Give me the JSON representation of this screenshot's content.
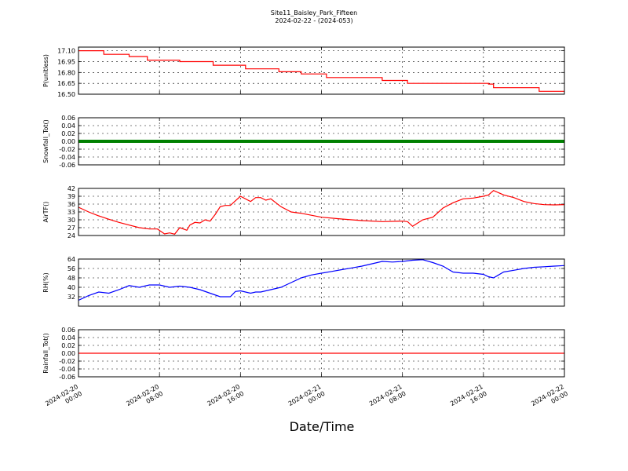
{
  "title": "Site11_Baisley_Park_Fifteen",
  "subtitle": "2024-02-22 - (2024-053)",
  "xlabel": "Date/Time",
  "x_ticks": [
    {
      "l1": "2024-02-20",
      "l2": "00:00",
      "h": 0
    },
    {
      "l1": "2024-02-20",
      "l2": "08:00",
      "h": 8
    },
    {
      "l1": "2024-02-20",
      "l2": "16:00",
      "h": 16
    },
    {
      "l1": "2024-02-21",
      "l2": "00:00",
      "h": 24
    },
    {
      "l1": "2024-02-21",
      "l2": "08:00",
      "h": 32
    },
    {
      "l1": "2024-02-21",
      "l2": "16:00",
      "h": 40
    },
    {
      "l1": "2024-02-22",
      "l2": "00:00",
      "h": 48
    }
  ],
  "chart_data": [
    {
      "type": "line",
      "ylabel": "P(unitless)",
      "ylim": [
        16.5,
        17.15
      ],
      "yticks": [
        "16.50",
        "16.65",
        "16.80",
        "16.95",
        "17.10"
      ],
      "ytick_values": [
        16.5,
        16.65,
        16.8,
        16.95,
        17.1
      ],
      "ytick_labels": [
        "16.50",
        "16.65",
        "16.80",
        "16.95",
        "17.10"
      ],
      "color": "#ff0000",
      "step": true,
      "x_hours": [
        0,
        2.5,
        5,
        6.8,
        10,
        13.3,
        16.5,
        19.8,
        22,
        24.5,
        27,
        30,
        32.5,
        36,
        40.5,
        41,
        45.5,
        48
      ],
      "values": [
        17.1,
        17.05,
        17.02,
        16.97,
        16.95,
        16.9,
        16.85,
        16.81,
        16.78,
        16.73,
        16.73,
        16.69,
        16.65,
        16.65,
        16.64,
        16.59,
        16.54,
        16.54
      ]
    },
    {
      "type": "scatter",
      "ylabel": "Snowfall_Tot()",
      "ylim": [
        -0.06,
        0.06
      ],
      "ytick_values": [
        -0.06,
        -0.04,
        -0.02,
        0,
        0.02,
        0.04,
        0.06
      ],
      "ytick_labels": [
        "-0.06",
        "-0.04",
        "-0.02",
        "0.00",
        "0.02",
        "0.04",
        "0.06"
      ],
      "color": "#008000",
      "x_hours": [
        0,
        48
      ],
      "values": [
        0,
        0
      ]
    },
    {
      "type": "line",
      "ylabel": "AirTF()",
      "ylim": [
        24,
        42
      ],
      "ytick_values": [
        24,
        27,
        30,
        33,
        36,
        39,
        42
      ],
      "ytick_labels": [
        "24",
        "27",
        "30",
        "33",
        "36",
        "39",
        "42"
      ],
      "color": "#ff0000",
      "x_hours": [
        0,
        1,
        2,
        3,
        4,
        5,
        6,
        7,
        7.8,
        8.5,
        9,
        9.5,
        10,
        10.7,
        11,
        11.5,
        12,
        12.5,
        13,
        13.5,
        14,
        14.5,
        15,
        16,
        17,
        17.5,
        18,
        18.5,
        19,
        20,
        21,
        22,
        24,
        26,
        28,
        30,
        32,
        32.5,
        33,
        34,
        35,
        36,
        37,
        38,
        39,
        40,
        40.5,
        41,
        42,
        43,
        44,
        45,
        46,
        47,
        48
      ],
      "values": [
        34.8,
        33,
        31.5,
        30.2,
        29,
        28,
        27,
        26.5,
        26.5,
        24.6,
        25,
        24.5,
        27,
        26,
        28,
        29,
        28.8,
        30,
        29.5,
        32,
        35,
        35.5,
        35.5,
        39,
        37,
        38.5,
        38.5,
        37.5,
        38,
        35,
        33,
        32.5,
        31,
        30.3,
        29.7,
        29.3,
        29.5,
        29.3,
        27.5,
        30,
        31,
        34.5,
        36.5,
        38,
        38.3,
        39,
        39.5,
        41.2,
        39.5,
        38.5,
        37,
        36.2,
        35.8,
        35.7,
        35.8
      ]
    },
    {
      "type": "line",
      "ylabel": "RH(%)",
      "ylim": [
        24,
        64
      ],
      "ytick_values": [
        32,
        40,
        48,
        56,
        64
      ],
      "ytick_labels": [
        "32",
        "40",
        "48",
        "56",
        "64"
      ],
      "color": "#0000ff",
      "x_hours": [
        0,
        1,
        2,
        3,
        4,
        5,
        6,
        7,
        8,
        9,
        10,
        11,
        12,
        13,
        14,
        15,
        15.5,
        16,
        17,
        17.5,
        18,
        19,
        20,
        21,
        22,
        23,
        24,
        25,
        26,
        27,
        28,
        29,
        30,
        31,
        32,
        33,
        34,
        35,
        36,
        37,
        38,
        39,
        40,
        40.5,
        41,
        42,
        43,
        44,
        45,
        46,
        47,
        48
      ],
      "values": [
        29,
        33,
        36,
        35,
        38,
        41.5,
        40,
        42,
        42,
        40,
        41,
        40,
        38,
        35,
        32,
        32,
        36.5,
        37,
        35,
        36,
        36,
        38,
        40,
        44,
        48,
        50.5,
        52,
        53.5,
        55,
        56.5,
        58,
        60,
        62,
        61.5,
        62,
        63,
        63.5,
        61,
        58,
        53,
        52,
        52,
        51,
        49,
        48,
        53,
        54.5,
        56,
        57,
        57.5,
        58,
        58.5
      ]
    },
    {
      "type": "line",
      "ylabel": "Rainfall_Tot()",
      "ylim": [
        -0.06,
        0.06
      ],
      "ytick_values": [
        -0.06,
        -0.04,
        -0.02,
        0,
        0.02,
        0.04,
        0.06
      ],
      "ytick_labels": [
        "-0.06",
        "-0.04",
        "-0.02",
        "0.00",
        "0.02",
        "0.04",
        "0.06"
      ],
      "color": "#ff0000",
      "x_hours": [
        0,
        48
      ],
      "values": [
        0,
        0
      ]
    }
  ]
}
